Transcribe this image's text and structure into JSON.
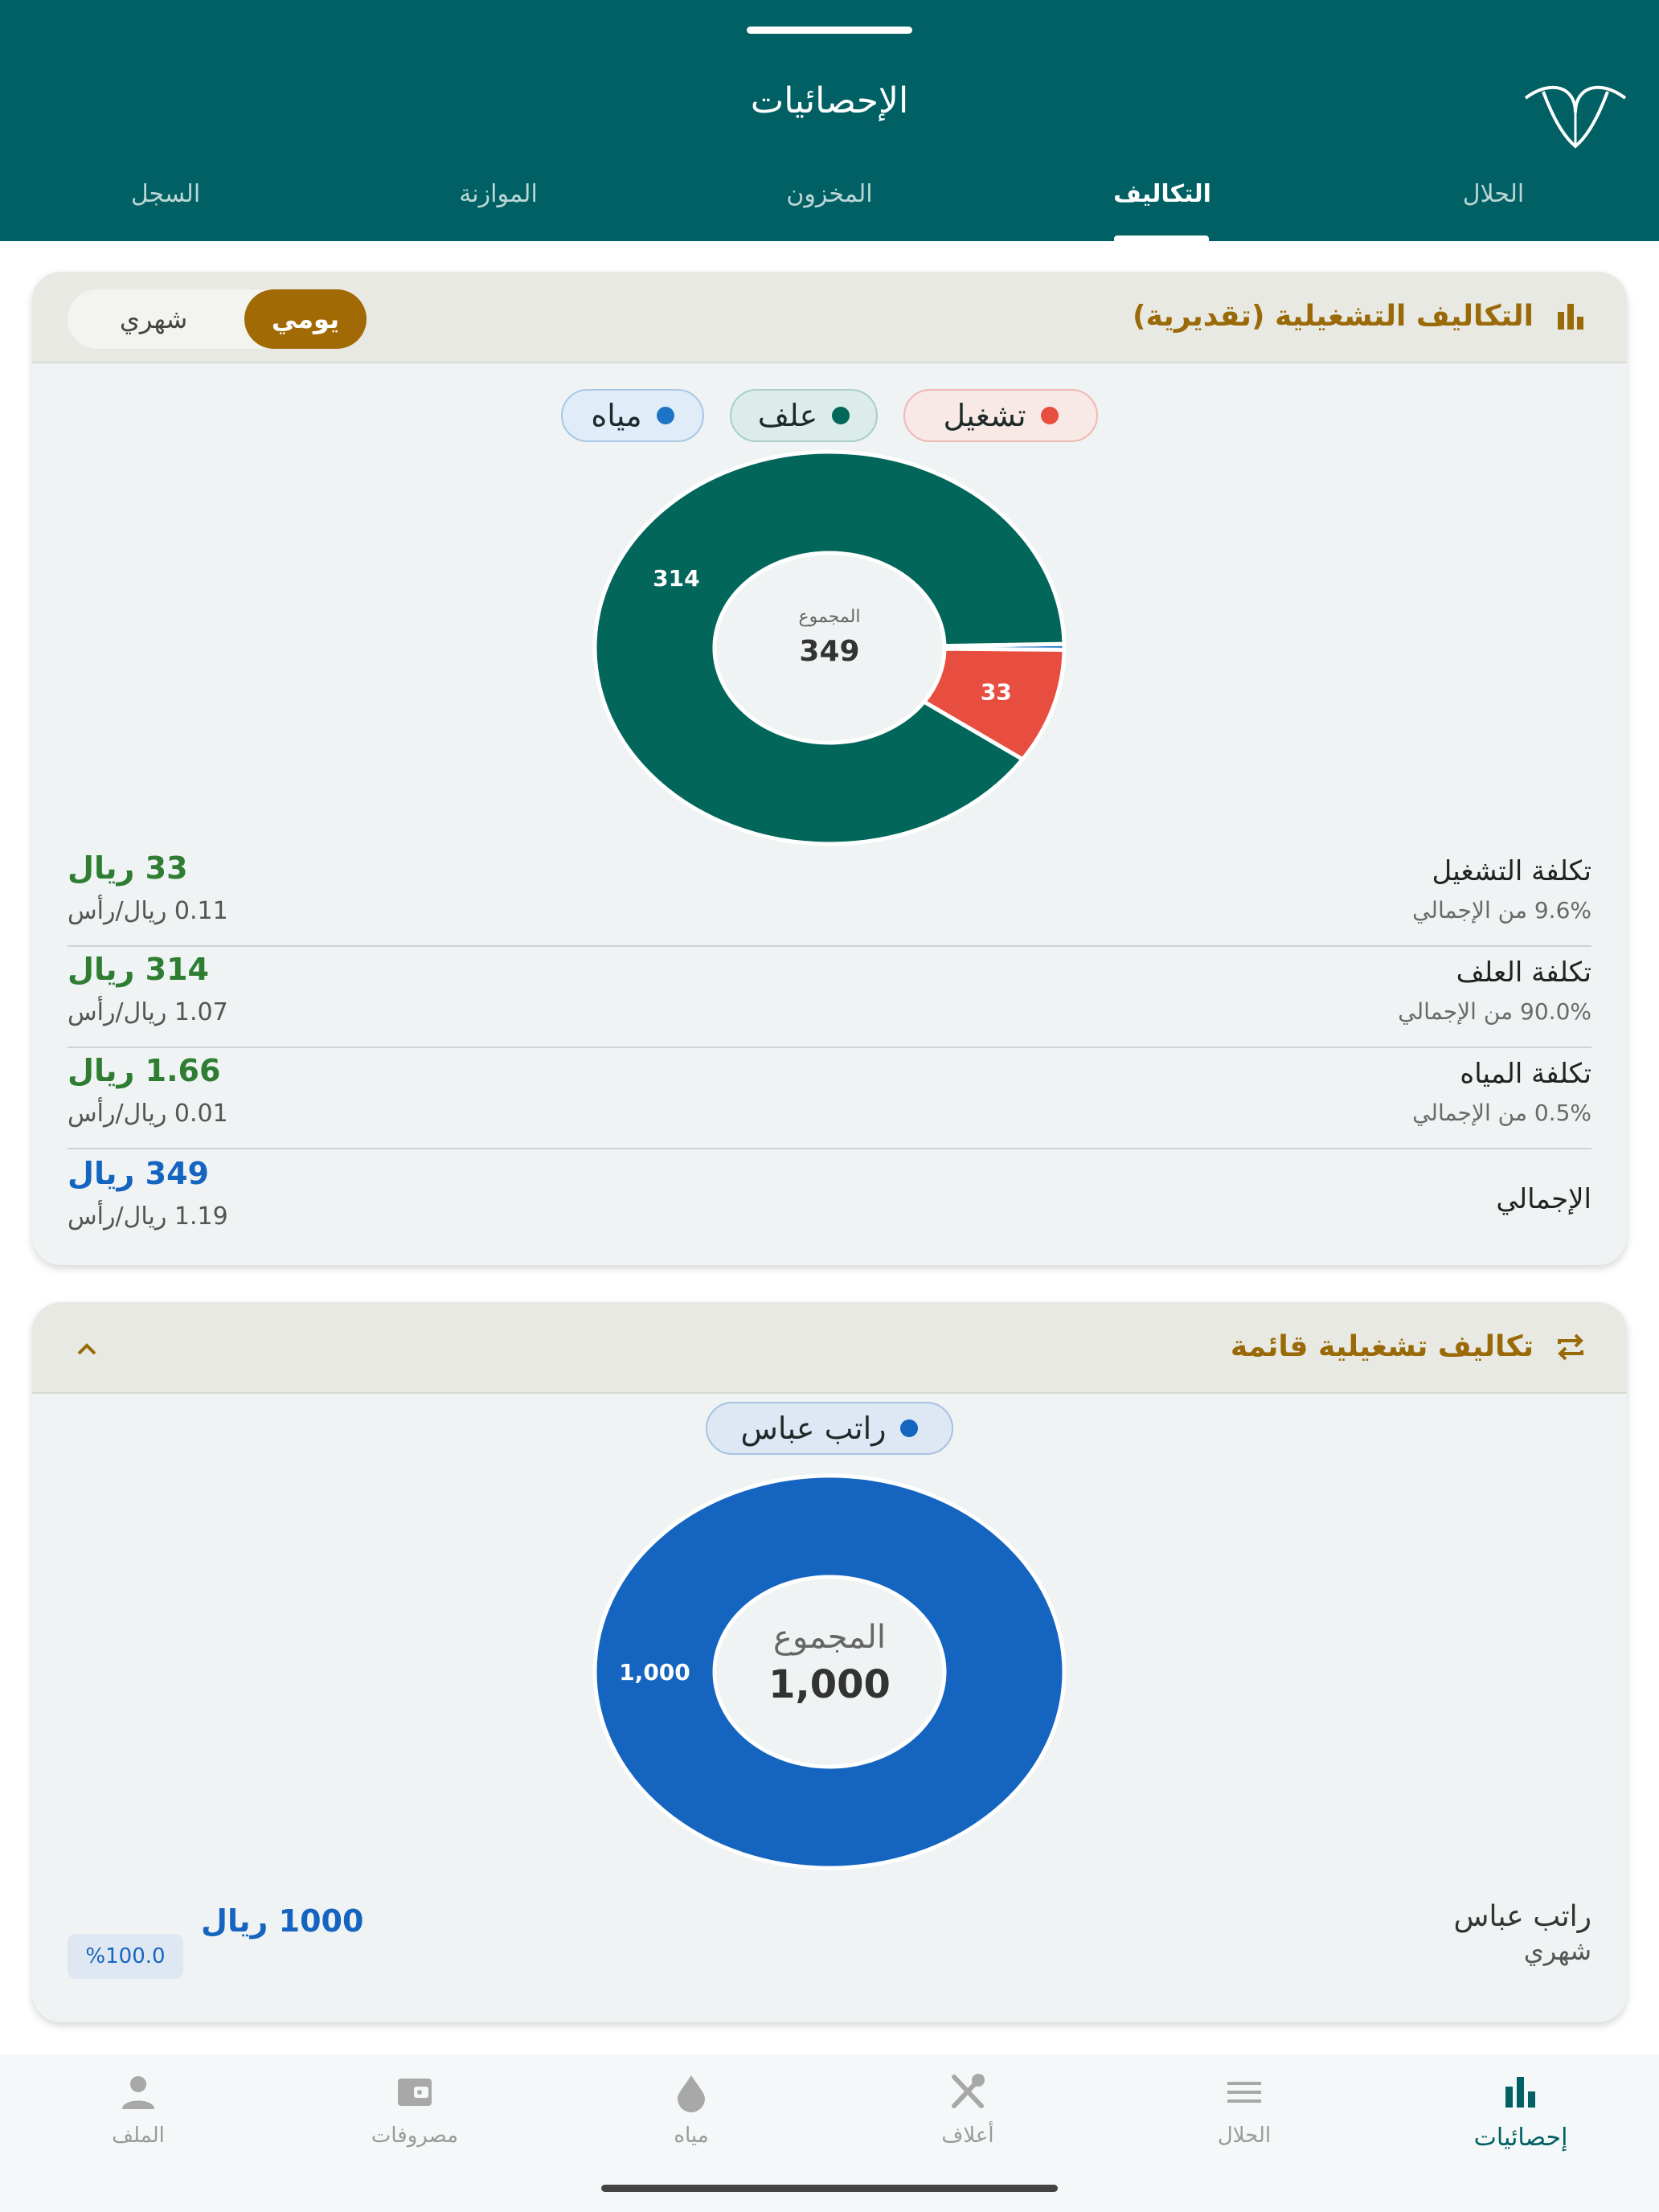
{
  "header": {
    "title": "الإحصائيات",
    "logo": "logo-icon",
    "tabs": [
      {
        "label": "الحلال",
        "active": false
      },
      {
        "label": "التكاليف",
        "active": true
      },
      {
        "label": "المخزون",
        "active": false
      },
      {
        "label": "الموازنة",
        "active": false
      },
      {
        "label": "السجل",
        "active": false
      }
    ]
  },
  "operating_costs": {
    "title": "التكاليف التشغيلية (تقديرية)",
    "icon": "bar-chart-icon",
    "period_toggle": {
      "daily": "يومي",
      "monthly": "شهري",
      "selected": "daily"
    },
    "legend": [
      {
        "label": "تشغيل",
        "color": "#e84e3f"
      },
      {
        "label": "علف",
        "color": "#02665a"
      },
      {
        "label": "مياه",
        "color": "#1e74c4"
      }
    ],
    "chart_data": {
      "type": "pie",
      "categories": [
        "تشغيل",
        "علف",
        "مياه"
      ],
      "values": [
        33,
        314,
        1.66
      ],
      "slice_labels": [
        "33",
        "314",
        ""
      ],
      "colors": [
        "#e84e3f",
        "#02665a",
        "#1e74c4"
      ],
      "center_label": "المجموع",
      "center_value": "349"
    },
    "rows": [
      {
        "name": "تكلفة التشغيل",
        "pct": "9.6% من الإجمالي",
        "amount": "33 ريال",
        "per_head": "0.11 ريال/رأس"
      },
      {
        "name": "تكلفة العلف",
        "pct": "90.0% من الإجمالي",
        "amount": "314 ريال",
        "per_head": "1.07 ريال/رأس"
      },
      {
        "name": "تكلفة المياه",
        "pct": "0.5% من الإجمالي",
        "amount": "1.66 ريال",
        "per_head": "0.01 ريال/رأس"
      }
    ],
    "total": {
      "name": "الإجمالي",
      "amount": "349 ريال",
      "per_head": "1.19 ريال/رأس"
    }
  },
  "recurring_costs": {
    "title": "تكاليف تشغيلية قائمة",
    "icon": "repeat-icon",
    "collapse_icon": "chevron-up-icon",
    "legend": [
      {
        "label": "راتب عباس",
        "color": "#1565c0"
      }
    ],
    "chart_data": {
      "type": "pie",
      "categories": [
        "راتب عباس"
      ],
      "values": [
        1000
      ],
      "slice_labels": [
        "1,000"
      ],
      "colors": [
        "#1565c0"
      ],
      "center_label": "المجموع",
      "center_value": "1,000"
    },
    "items": [
      {
        "name": "راتب عباس",
        "period": "شهري",
        "amount": "1000 ريال",
        "pct": "%100.0"
      }
    ]
  },
  "bottom_nav": [
    {
      "label": "إحصائيات",
      "icon": "stats-icon",
      "active": true
    },
    {
      "label": "الحلال",
      "icon": "menu-icon",
      "active": false
    },
    {
      "label": "أعلاف",
      "icon": "feed-icon",
      "active": false
    },
    {
      "label": "مياه",
      "icon": "water-drop-icon",
      "active": false
    },
    {
      "label": "مصروفات",
      "icon": "wallet-icon",
      "active": false
    },
    {
      "label": "الملف",
      "icon": "profile-icon",
      "active": false
    }
  ]
}
